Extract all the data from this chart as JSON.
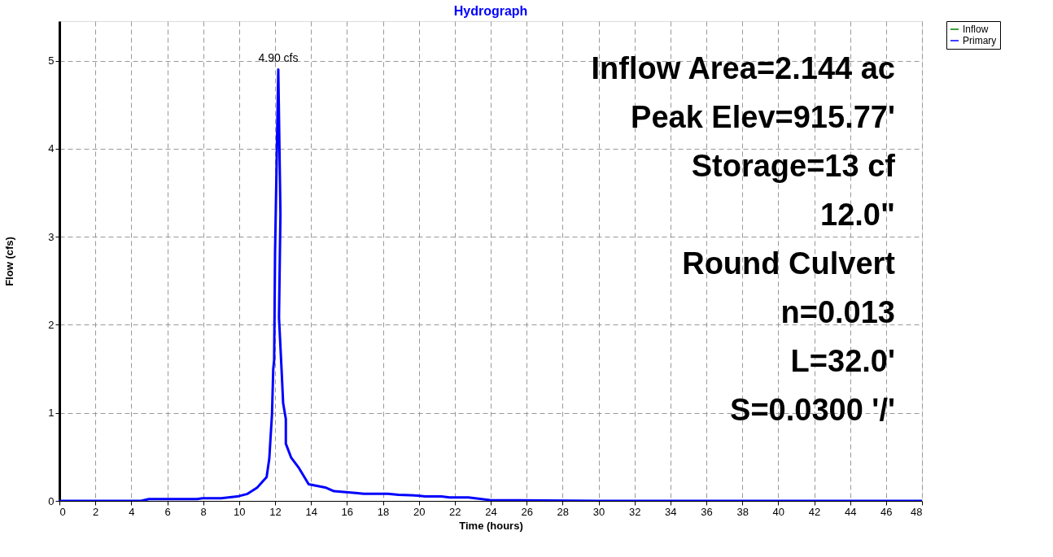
{
  "chart_data": {
    "type": "line",
    "title": "Hydrograph",
    "xlabel": "Time  (hours)",
    "ylabel": "Flow  (cfs)",
    "x": [
      0,
      4.53,
      4.98,
      7.66,
      7.96,
      9.0,
      9.9,
      10.47,
      11.0,
      11.53,
      11.68,
      11.75,
      11.83,
      11.9,
      11.95,
      12.0,
      12.18,
      12.3,
      12.22,
      12.37,
      12.45,
      12.6,
      12.6,
      12.9,
      13.34,
      13.87,
      14.84,
      15.28,
      16.48,
      16.93,
      18.27,
      18.87,
      19.92,
      20.36,
      21.26,
      21.71,
      22.76,
      23.95,
      30,
      40,
      48
    ],
    "series": [
      {
        "name": "Inflow",
        "color": "#008000",
        "values": [
          null,
          null,
          null,
          null,
          null,
          null,
          null,
          null,
          null,
          null,
          null,
          null,
          null,
          null,
          null,
          null,
          null,
          null,
          null,
          null,
          null,
          null,
          null,
          null,
          null,
          null,
          null,
          null,
          null,
          null,
          null,
          null,
          null,
          null,
          null,
          null,
          null,
          null,
          null,
          null,
          null
        ]
      },
      {
        "name": "Primary",
        "color": "#0000ff",
        "values": [
          0,
          0,
          0.02,
          0.02,
          0.03,
          0.03,
          0.05,
          0.08,
          0.15,
          0.27,
          0.48,
          0.72,
          0.98,
          1.5,
          1.6,
          2.82,
          4.9,
          3.26,
          2.08,
          1.46,
          1.11,
          0.93,
          0.65,
          0.49,
          0.37,
          0.19,
          0.15,
          0.11,
          0.09,
          0.08,
          0.08,
          0.07,
          0.06,
          0.05,
          0.05,
          0.04,
          0.04,
          0.01,
          0,
          0,
          0
        ]
      }
    ],
    "xlim": [
      0,
      48
    ],
    "xticks": [
      0,
      2,
      4,
      6,
      8,
      10,
      12,
      14,
      16,
      18,
      20,
      22,
      24,
      26,
      28,
      30,
      32,
      34,
      36,
      38,
      40,
      42,
      44,
      46,
      48
    ],
    "ylim": [
      0,
      5.45
    ],
    "yticks": [
      0,
      1,
      2,
      3,
      4,
      5
    ],
    "grid": true,
    "legend": "top right",
    "line_style": "solid",
    "annotations": [
      {
        "text": "4.90 cfs",
        "x": 12.18,
        "y": 4.9
      },
      "Inflow Area=2.144 ac",
      "Peak Elev=915.77'",
      "Storage=13 cf",
      "12.0\"",
      "Round Culvert",
      "n=0.013",
      "L=32.0'",
      "S=0.0300 '/'"
    ]
  }
}
